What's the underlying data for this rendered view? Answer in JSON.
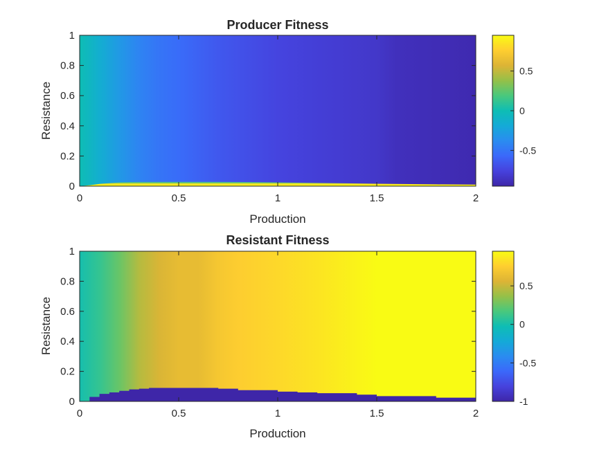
{
  "chart_data": [
    {
      "type": "heatmap",
      "title": "Producer Fitness",
      "xlabel": "Production",
      "ylabel": "Resistance",
      "xlim": [
        0,
        2
      ],
      "ylim": [
        0,
        1
      ],
      "x_ticks": [
        "0",
        "0.5",
        "1",
        "1.5",
        "2"
      ],
      "y_ticks": [
        "0",
        "0.2",
        "0.4",
        "0.6",
        "0.8",
        "1"
      ],
      "colormap": "parula",
      "clim": [
        -0.95,
        0.95
      ],
      "colorbar_ticks": [
        "0.5",
        "0",
        "-0.5"
      ],
      "colorbar_tick_values": [
        0.5,
        0,
        -0.5
      ],
      "boundary_profile": {
        "x": [
          0,
          0.05,
          0.1,
          0.2,
          0.3,
          0.4,
          0.5,
          0.6,
          0.8,
          1.0,
          1.2,
          1.5,
          1.8,
          2.0
        ],
        "resistance": [
          0,
          0.006,
          0.015,
          0.025,
          0.03,
          0.032,
          0.032,
          0.031,
          0.028,
          0.025,
          0.021,
          0.016,
          0.012,
          0.01
        ]
      },
      "fitness_profile": {
        "x": [
          0,
          0.05,
          0.1,
          0.2,
          0.3,
          0.4,
          0.5,
          0.7,
          1.0,
          1.3,
          1.5,
          1.6,
          2.0
        ],
        "fitness": [
          0.0,
          -0.07,
          -0.15,
          -0.3,
          -0.42,
          -0.5,
          -0.55,
          -0.65,
          -0.75,
          -0.8,
          -0.83,
          -0.88,
          -0.92
        ]
      }
    },
    {
      "type": "heatmap",
      "title": "Resistant Fitness",
      "xlabel": "Production",
      "ylabel": "Resistance",
      "xlim": [
        0,
        2
      ],
      "ylim": [
        0,
        1
      ],
      "x_ticks": [
        "0",
        "0.5",
        "1",
        "1.5",
        "2"
      ],
      "y_ticks": [
        "0",
        "0.2",
        "0.4",
        "0.6",
        "0.8",
        "1"
      ],
      "colormap": "parula",
      "clim": [
        -1,
        0.95
      ],
      "colorbar_ticks": [
        "0.5",
        "0",
        "-0.5",
        "-1"
      ],
      "colorbar_tick_values": [
        0.5,
        0,
        -0.5,
        -1
      ],
      "boundary_profile": {
        "x": [
          0,
          0.05,
          0.1,
          0.15,
          0.2,
          0.25,
          0.3,
          0.35,
          0.5,
          0.6,
          0.7,
          0.8,
          1.0,
          1.1,
          1.2,
          1.4,
          1.5,
          1.8,
          2.0
        ],
        "resistance": [
          0.0,
          0.03,
          0.05,
          0.06,
          0.07,
          0.08,
          0.085,
          0.09,
          0.09,
          0.09,
          0.085,
          0.075,
          0.065,
          0.06,
          0.055,
          0.045,
          0.035,
          0.025,
          0.02
        ]
      },
      "fitness_profile": {
        "x": [
          0,
          0.1,
          0.2,
          0.3,
          0.4,
          0.5,
          0.6,
          0.7,
          0.8,
          1.0,
          1.2,
          1.5,
          2.0
        ],
        "fitness": [
          0.0,
          0.1,
          0.25,
          0.45,
          0.55,
          0.62,
          0.62,
          0.7,
          0.75,
          0.8,
          0.85,
          0.95,
          0.95
        ]
      }
    }
  ]
}
